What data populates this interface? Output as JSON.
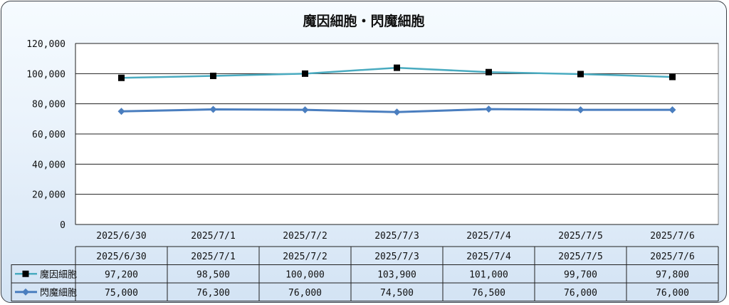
{
  "chart_data": {
    "type": "line",
    "title": "魔因細胞・閃魔細胞",
    "categories": [
      "2025/6/30",
      "2025/7/1",
      "2025/7/2",
      "2025/7/3",
      "2025/7/4",
      "2025/7/5",
      "2025/7/6"
    ],
    "series": [
      {
        "name": "魔因細胞",
        "values": [
          97200,
          98500,
          100000,
          103900,
          101000,
          99700,
          97800
        ],
        "labels": [
          "97,200",
          "98,500",
          "100,000",
          "103,900",
          "101,000",
          "99,700",
          "97,800"
        ],
        "color": "#4aabc0",
        "marker": "square"
      },
      {
        "name": "閃魔細胞",
        "values": [
          75000,
          76300,
          76000,
          74500,
          76500,
          76000,
          76000
        ],
        "labels": [
          "75,000",
          "76,300",
          "76,000",
          "74,500",
          "76,500",
          "76,000",
          "76,000"
        ],
        "color": "#4a7ebf",
        "marker": "diamond"
      }
    ],
    "yticks": [
      "0",
      "20,000",
      "40,000",
      "60,000",
      "80,000",
      "100,000",
      "120,000"
    ],
    "ylim": [
      0,
      120000
    ],
    "grid": true,
    "legend": "data-table"
  }
}
